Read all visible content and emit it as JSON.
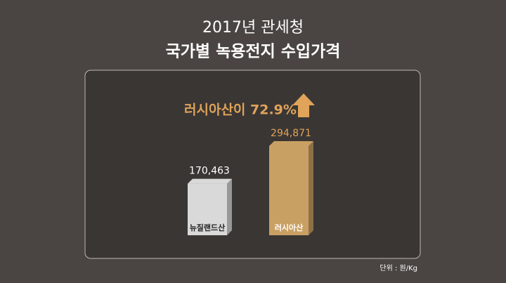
{
  "chart_data": {
    "type": "bar",
    "title": "2017년 관세청",
    "subtitle": "국가별 녹용전지 수입가격",
    "annotation": "러시아산이 72.9%",
    "unit_note": "단위 : 원/Kg",
    "categories": [
      "뉴질랜드산",
      "러시아산"
    ],
    "values": [
      170463,
      294871
    ],
    "value_labels": [
      "170,463",
      "294,871"
    ],
    "colors": [
      "#d9d9d9",
      "#c9a064"
    ]
  }
}
